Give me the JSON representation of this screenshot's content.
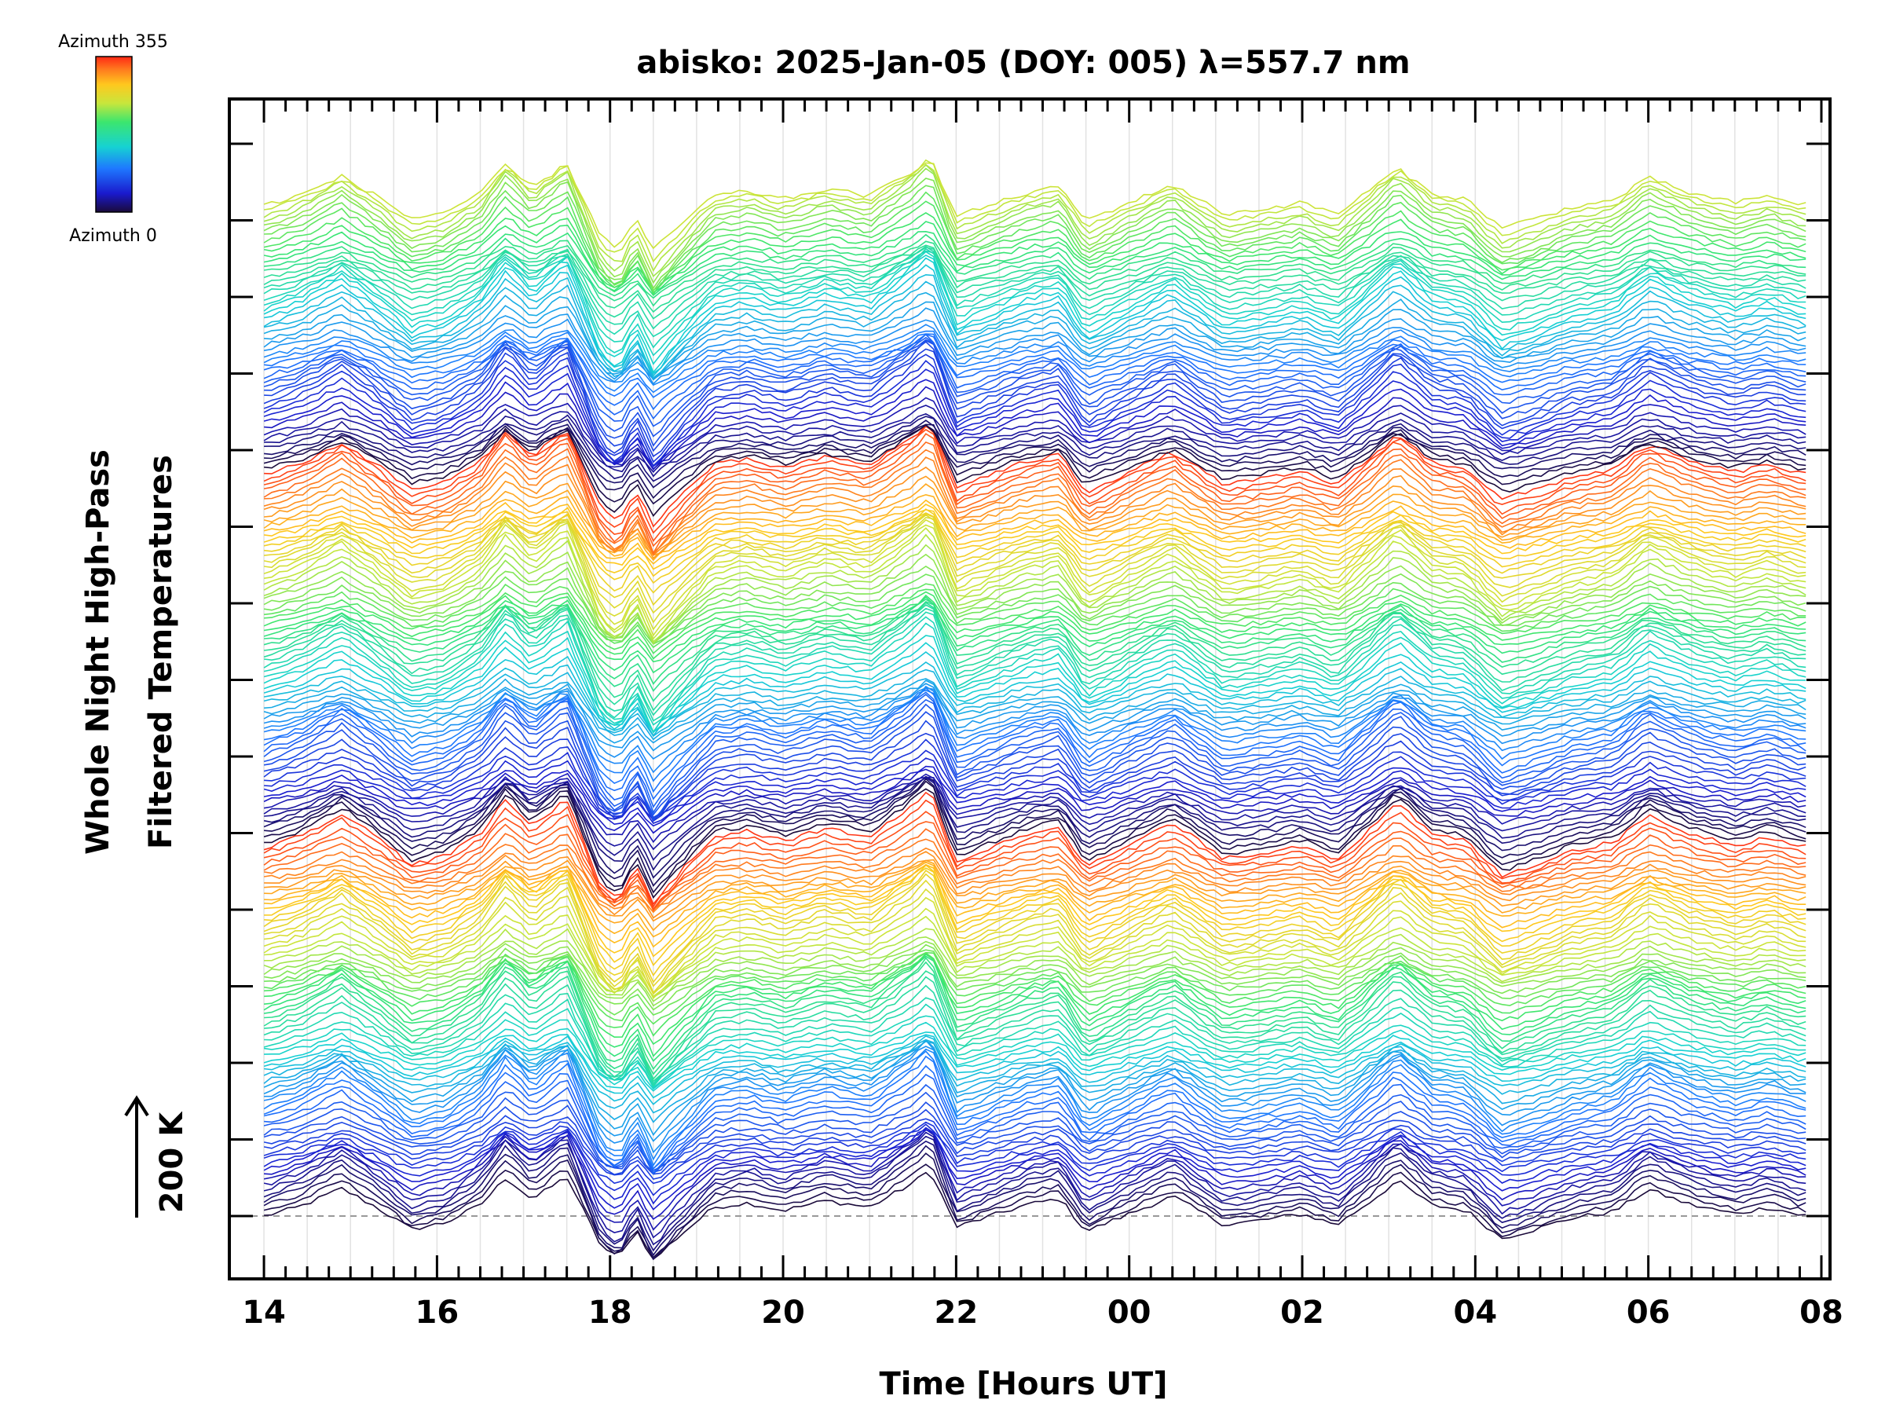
{
  "chart_data": {
    "type": "line",
    "title": "abisko: 2025-Jan-05 (DOY: 005) λ=557.7 nm",
    "xlabel": "Time [Hours UT]",
    "ylabel_line1": "Whole Night High-Pass",
    "ylabel_line2": "Filtered Temperatures",
    "scale_label": "200 K",
    "colorbar": {
      "top_label": "Azimuth 355",
      "bottom_label": "Azimuth 0",
      "colormap": "rainbow"
    },
    "x_ticks": [
      "14",
      "16",
      "18",
      "20",
      "22",
      "00",
      "02",
      "04",
      "06",
      "08"
    ],
    "x_range_hours_ut": [
      13.6,
      32.1
    ],
    "grid": true,
    "n_traces": 196,
    "azimuth_range_deg": [
      0,
      355
    ],
    "baseline_dashed": true
  }
}
